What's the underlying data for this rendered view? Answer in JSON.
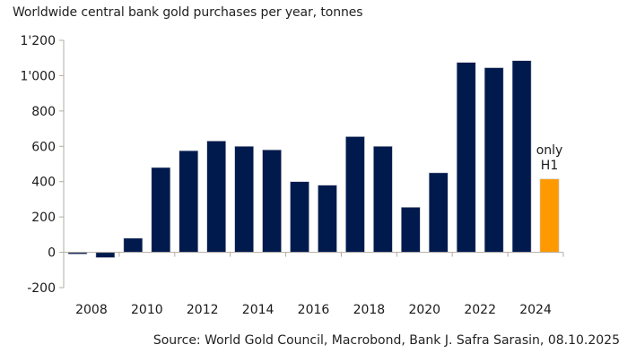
{
  "chart_data": {
    "type": "bar",
    "title": "Worldwide central bank gold purchases per year, tonnes",
    "xlabel": "",
    "ylabel": "",
    "categories": [
      "2008",
      "2009",
      "2010",
      "2011",
      "2012",
      "2013",
      "2014",
      "2015",
      "2016",
      "2017",
      "2018",
      "2019",
      "2020",
      "2021",
      "2022",
      "2023",
      "2024",
      "2025"
    ],
    "values": [
      -10,
      -30,
      80,
      480,
      575,
      630,
      600,
      580,
      400,
      380,
      655,
      600,
      255,
      450,
      1075,
      1045,
      1085,
      415
    ],
    "bar_colors": {
      "default": "#001a4d",
      "highlight": "#ff9900"
    },
    "highlight_category": "2025",
    "xtick_labels": [
      "2008",
      "2010",
      "2012",
      "2014",
      "2016",
      "2018",
      "2020",
      "2022",
      "2024"
    ],
    "ylim": [
      -200,
      1200
    ],
    "yticks": [
      -200,
      0,
      200,
      400,
      600,
      800,
      1000,
      1200
    ],
    "ytick_labels": [
      "-200",
      "0",
      "200",
      "400",
      "600",
      "800",
      "1'000",
      "1'200"
    ],
    "grid": false,
    "annotations": [
      {
        "category": "2025",
        "lines": [
          "only",
          "H1"
        ]
      }
    ],
    "axis_color": "#b3aca3"
  },
  "source": "Source: World Gold Council, Macrobond, Bank J. Safra Sarasin, 08.10.2025"
}
